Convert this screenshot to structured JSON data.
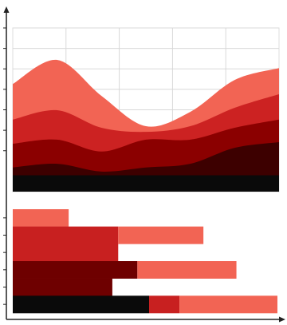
{
  "chart_data": [
    {
      "type": "area",
      "categories": [
        null,
        null,
        null,
        null,
        null,
        null,
        null
      ],
      "ylim": [
        0,
        40
      ],
      "yticks": [
        10,
        15,
        20,
        25,
        30,
        35,
        40
      ],
      "grid": true,
      "series": [
        {
          "color": "#0a0a0a",
          "values": [
            4,
            4,
            4,
            4,
            4,
            4,
            4
          ]
        },
        {
          "color": "#3d0000",
          "values": [
            1.9,
            2.8,
            0.9,
            1.9,
            2.8,
            6.7,
            8.1
          ]
        },
        {
          "color": "#8b0000",
          "values": [
            5.8,
            5.9,
            4.9,
            6.8,
            5.9,
            4.9,
            5.5
          ]
        },
        {
          "color": "#cc2222",
          "values": [
            5.9,
            7.2,
            5.8,
            1.9,
            3.3,
            4.9,
            6.2
          ]
        },
        {
          "color": "#f26454",
          "values": [
            8.7,
            12.3,
            7.8,
            1.4,
            3.5,
            6.8,
            6.4
          ]
        }
      ]
    },
    {
      "type": "hbar",
      "categories": [
        null,
        null,
        null,
        null,
        null,
        null
      ],
      "xlim": [
        0,
        50
      ],
      "series": [
        {
          "color": "#0a0a0a",
          "values": [
            null,
            null,
            null,
            null,
            null,
            25.6
          ]
        },
        {
          "color": "#6e0000",
          "values": [
            null,
            null,
            null,
            23.4,
            18.7,
            null
          ]
        },
        {
          "color": "#c82020",
          "values": [
            null,
            19.8,
            19.8,
            null,
            null,
            5.7
          ]
        },
        {
          "color": "#f26454",
          "values": [
            10.5,
            16,
            null,
            18.6,
            null,
            18.4
          ]
        }
      ]
    }
  ]
}
